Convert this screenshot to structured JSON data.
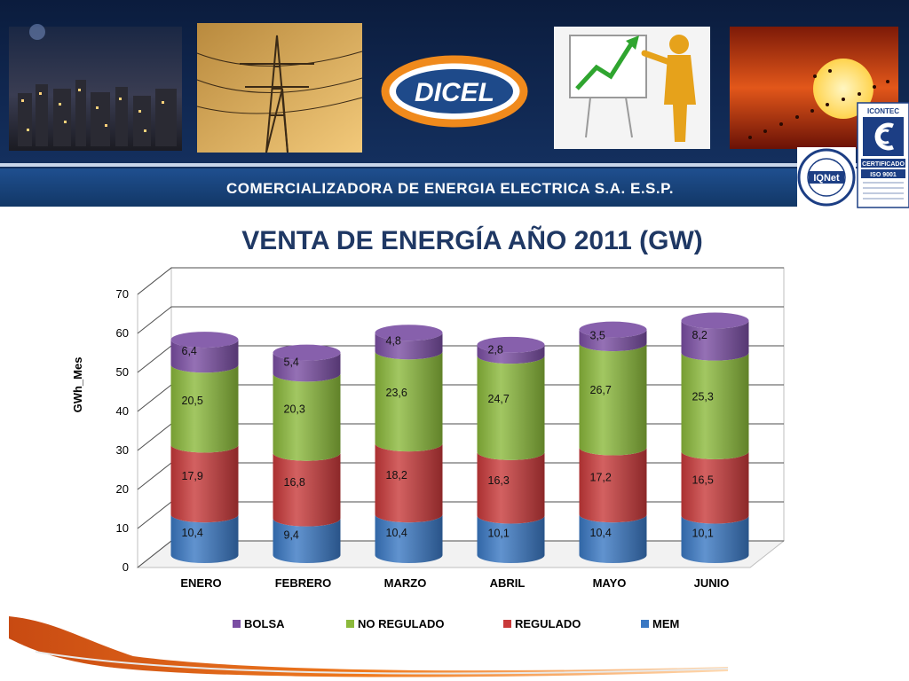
{
  "header": {
    "logo_text": "DICEL",
    "company": "COMERCIALIZADORA DE ENERGIA ELECTRICA S.A. E.S.P."
  },
  "certifications": {
    "icontec_top": "ICONTEC",
    "icontec_cert": "CERTIFICADO",
    "icontec_iso": "ISO 9001",
    "iqnet_brand": "IQNet"
  },
  "chart_data": {
    "type": "bar",
    "stacked": true,
    "title": "VENTA DE ENERGÍA  AÑO 2011 (GW)",
    "xlabel": "",
    "ylabel": "GWh_Mes",
    "ylim": [
      0,
      70
    ],
    "yticks": [
      0,
      10,
      20,
      30,
      40,
      50,
      60,
      70
    ],
    "grid": true,
    "legend_position": "bottom",
    "categories": [
      "ENERO",
      "FEBRERO",
      "MARZO",
      "ABRIL",
      "MAYO",
      "JUNIO"
    ],
    "series": [
      {
        "name": "MEM",
        "color": "#3a78c3",
        "values": [
          10.4,
          9.4,
          10.4,
          10.1,
          10.4,
          10.1
        ],
        "labels": [
          "10,4",
          "9,4",
          "10,4",
          "10,1",
          "10,4",
          "10,1"
        ]
      },
      {
        "name": "REGULADO",
        "color": "#c8393a",
        "values": [
          17.9,
          16.8,
          18.2,
          16.3,
          17.2,
          16.5
        ],
        "labels": [
          "17,9",
          "16,8",
          "18,2",
          "16,3",
          "17,2",
          "16,5"
        ]
      },
      {
        "name": "NO REGULADO",
        "color": "#8bb93b",
        "values": [
          20.5,
          20.3,
          23.6,
          24.7,
          26.7,
          25.3
        ],
        "labels": [
          "20,5",
          "20,3",
          "23,6",
          "24,7",
          "26,7",
          "25,3"
        ]
      },
      {
        "name": "BOLSA",
        "color": "#7a4ea3",
        "values": [
          6.4,
          5.4,
          4.8,
          2.8,
          3.5,
          8.2
        ],
        "labels": [
          "6,4",
          "5,4",
          "4,8",
          "2,8",
          "3,5",
          "8,2"
        ]
      }
    ],
    "legend_order": [
      "BOLSA",
      "NO REGULADO",
      "REGULADO",
      "MEM"
    ]
  }
}
